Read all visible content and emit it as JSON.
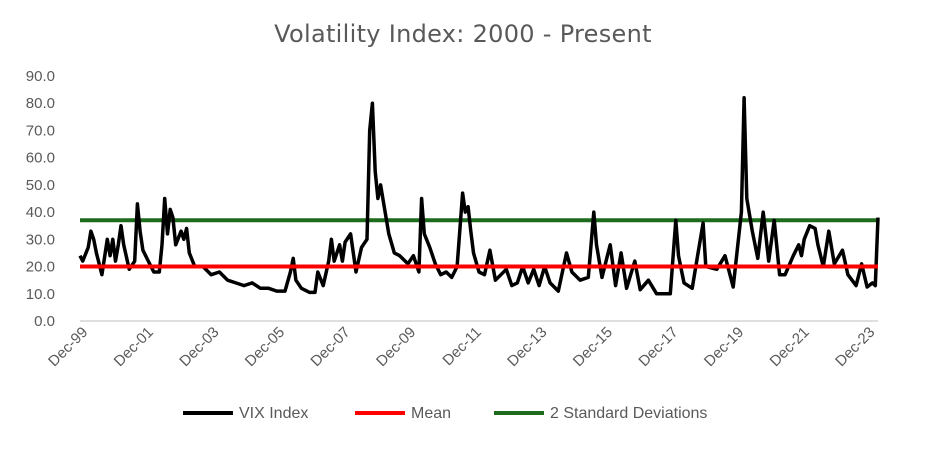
{
  "chart_data": {
    "type": "line",
    "title": "Volatility Index: 2000 - Present",
    "xlabel": "",
    "ylabel": "",
    "ylim": [
      0,
      90
    ],
    "y_ticks": [
      "0.0",
      "10.0",
      "20.0",
      "30.0",
      "40.0",
      "50.0",
      "60.0",
      "70.0",
      "80.0",
      "90.0"
    ],
    "x_range": [
      "1999-12",
      "2024-04"
    ],
    "x_ticks": [
      "Dec-99",
      "Dec-01",
      "Dec-03",
      "Dec-05",
      "Dec-07",
      "Dec-09",
      "Dec-11",
      "Dec-13",
      "Dec-15",
      "Dec-17",
      "Dec-19",
      "Dec-21",
      "Dec-23"
    ],
    "grid": false,
    "legend_position": "bottom",
    "series": [
      {
        "name": "VIX Index",
        "color": "#000000",
        "points": [
          [
            "1999-12",
            24
          ],
          [
            "2000-01",
            22
          ],
          [
            "2000-03",
            27
          ],
          [
            "2000-04",
            33
          ],
          [
            "2000-05",
            30
          ],
          [
            "2000-06",
            25
          ],
          [
            "2000-08",
            17
          ],
          [
            "2000-10",
            30
          ],
          [
            "2000-11",
            24
          ],
          [
            "2000-12",
            30
          ],
          [
            "2001-01",
            22
          ],
          [
            "2001-02",
            28
          ],
          [
            "2001-03",
            35
          ],
          [
            "2001-04",
            28
          ],
          [
            "2001-06",
            19
          ],
          [
            "2001-08",
            22
          ],
          [
            "2001-09",
            43
          ],
          [
            "2001-10",
            33
          ],
          [
            "2001-11",
            26
          ],
          [
            "2002-01",
            22
          ],
          [
            "2002-03",
            18
          ],
          [
            "2002-05",
            18
          ],
          [
            "2002-06",
            28
          ],
          [
            "2002-07",
            45
          ],
          [
            "2002-08",
            32
          ],
          [
            "2002-09",
            41
          ],
          [
            "2002-10",
            38
          ],
          [
            "2002-11",
            28
          ],
          [
            "2003-01",
            33
          ],
          [
            "2003-02",
            30
          ],
          [
            "2003-03",
            34
          ],
          [
            "2003-04",
            25
          ],
          [
            "2003-06",
            20
          ],
          [
            "2003-09",
            20
          ],
          [
            "2003-12",
            17
          ],
          [
            "2004-03",
            18
          ],
          [
            "2004-06",
            15
          ],
          [
            "2004-09",
            14
          ],
          [
            "2004-12",
            13
          ],
          [
            "2005-03",
            14
          ],
          [
            "2005-06",
            12
          ],
          [
            "2005-09",
            12
          ],
          [
            "2005-12",
            11
          ],
          [
            "2006-03",
            11
          ],
          [
            "2006-05",
            18
          ],
          [
            "2006-06",
            23
          ],
          [
            "2006-07",
            15
          ],
          [
            "2006-09",
            12
          ],
          [
            "2006-12",
            10.5
          ],
          [
            "2007-02",
            10.5
          ],
          [
            "2007-03",
            18
          ],
          [
            "2007-05",
            13
          ],
          [
            "2007-07",
            22
          ],
          [
            "2007-08",
            30
          ],
          [
            "2007-09",
            22
          ],
          [
            "2007-11",
            28
          ],
          [
            "2007-12",
            22
          ],
          [
            "2008-01",
            29
          ],
          [
            "2008-03",
            32
          ],
          [
            "2008-05",
            18
          ],
          [
            "2008-07",
            27
          ],
          [
            "2008-09",
            30
          ],
          [
            "2008-10",
            70
          ],
          [
            "2008-11",
            80
          ],
          [
            "2008-12",
            55
          ],
          [
            "2009-01",
            45
          ],
          [
            "2009-02",
            50
          ],
          [
            "2009-03",
            44
          ],
          [
            "2009-05",
            32
          ],
          [
            "2009-07",
            25
          ],
          [
            "2009-09",
            24
          ],
          [
            "2009-11",
            22
          ],
          [
            "2009-12",
            21
          ],
          [
            "2010-02",
            24
          ],
          [
            "2010-04",
            18
          ],
          [
            "2010-05",
            45
          ],
          [
            "2010-06",
            32
          ],
          [
            "2010-08",
            27
          ],
          [
            "2010-10",
            21
          ],
          [
            "2010-12",
            17
          ],
          [
            "2011-02",
            18
          ],
          [
            "2011-04",
            16
          ],
          [
            "2011-06",
            20
          ],
          [
            "2011-08",
            47
          ],
          [
            "2011-09",
            40
          ],
          [
            "2011-10",
            42
          ],
          [
            "2011-11",
            33
          ],
          [
            "2011-12",
            25
          ],
          [
            "2012-02",
            18
          ],
          [
            "2012-04",
            17
          ],
          [
            "2012-06",
            26
          ],
          [
            "2012-08",
            15
          ],
          [
            "2012-10",
            17
          ],
          [
            "2012-12",
            19
          ],
          [
            "2013-02",
            13
          ],
          [
            "2013-04",
            14
          ],
          [
            "2013-06",
            20
          ],
          [
            "2013-08",
            14
          ],
          [
            "2013-10",
            19
          ],
          [
            "2013-12",
            13
          ],
          [
            "2014-02",
            20
          ],
          [
            "2014-04",
            14
          ],
          [
            "2014-07",
            11
          ],
          [
            "2014-10",
            25
          ],
          [
            "2014-12",
            18
          ],
          [
            "2015-03",
            15
          ],
          [
            "2015-06",
            16
          ],
          [
            "2015-08",
            40
          ],
          [
            "2015-09",
            28
          ],
          [
            "2015-11",
            16
          ],
          [
            "2016-01",
            24
          ],
          [
            "2016-02",
            28
          ],
          [
            "2016-04",
            13
          ],
          [
            "2016-06",
            25
          ],
          [
            "2016-08",
            12
          ],
          [
            "2016-11",
            22
          ],
          [
            "2017-01",
            11.5
          ],
          [
            "2017-04",
            15
          ],
          [
            "2017-07",
            10
          ],
          [
            "2017-10",
            10
          ],
          [
            "2017-12",
            10
          ],
          [
            "2018-02",
            37
          ],
          [
            "2018-03",
            24
          ],
          [
            "2018-05",
            14
          ],
          [
            "2018-08",
            12
          ],
          [
            "2018-10",
            24
          ],
          [
            "2018-12",
            36
          ],
          [
            "2019-01",
            20
          ],
          [
            "2019-05",
            19
          ],
          [
            "2019-08",
            24
          ],
          [
            "2019-11",
            12.5
          ],
          [
            "2020-02",
            40
          ],
          [
            "2020-03",
            82
          ],
          [
            "2020-04",
            45
          ],
          [
            "2020-06",
            33
          ],
          [
            "2020-08",
            23
          ],
          [
            "2020-10",
            40
          ],
          [
            "2020-12",
            22
          ],
          [
            "2021-02",
            37
          ],
          [
            "2021-04",
            17
          ],
          [
            "2021-06",
            17
          ],
          [
            "2021-09",
            24
          ],
          [
            "2021-11",
            28
          ],
          [
            "2021-12",
            24
          ],
          [
            "2022-01",
            30
          ],
          [
            "2022-03",
            35
          ],
          [
            "2022-05",
            34
          ],
          [
            "2022-06",
            28
          ],
          [
            "2022-08",
            20
          ],
          [
            "2022-10",
            33
          ],
          [
            "2022-12",
            21
          ],
          [
            "2023-03",
            26
          ],
          [
            "2023-05",
            17
          ],
          [
            "2023-08",
            13
          ],
          [
            "2023-10",
            21
          ],
          [
            "2023-12",
            12.5
          ],
          [
            "2024-02",
            14
          ],
          [
            "2024-03",
            13
          ],
          [
            "2024-04",
            38
          ]
        ]
      },
      {
        "name": "Mean",
        "color": "#ff0000",
        "value": 20
      },
      {
        "name": "2 Standard Deviations",
        "color": "#1e6b1e",
        "value": 37
      }
    ]
  }
}
